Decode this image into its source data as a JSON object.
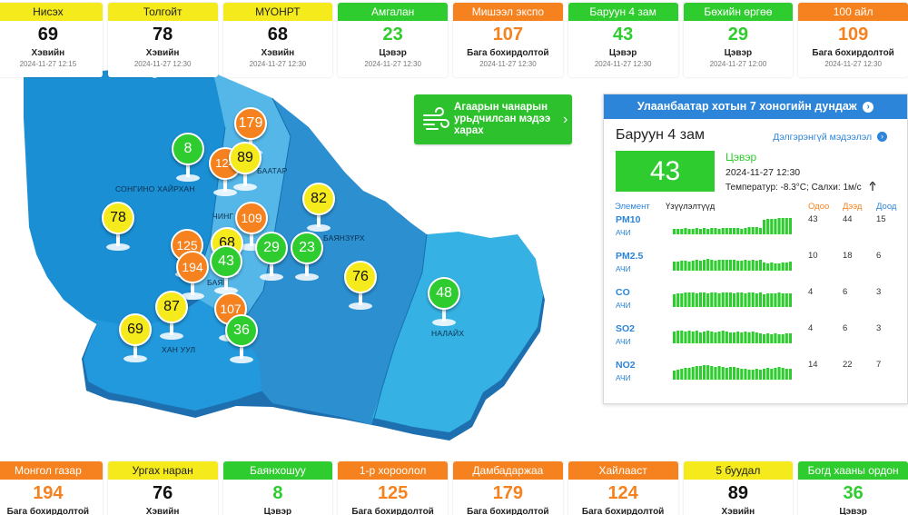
{
  "top_cards": [
    {
      "name": "Нисэх",
      "value": "69",
      "status": "Хэвийн",
      "time": "2024-11-27 12:15",
      "level": "yellow"
    },
    {
      "name": "Толгойт",
      "value": "78",
      "status": "Хэвийн",
      "time": "2024-11-27 12:30",
      "level": "yellow"
    },
    {
      "name": "МҮОНРТ",
      "value": "68",
      "status": "Хэвийн",
      "time": "2024-11-27 12:30",
      "level": "yellow"
    },
    {
      "name": "Амгалан",
      "value": "23",
      "status": "Цэвэр",
      "time": "2024-11-27 12:30",
      "level": "green"
    },
    {
      "name": "Мишээл экспо",
      "value": "107",
      "status": "Бага бохирдолтой",
      "time": "2024-11-27 12:30",
      "level": "orange"
    },
    {
      "name": "Баруун 4 зам",
      "value": "43",
      "status": "Цэвэр",
      "time": "2024-11-27 12:30",
      "level": "green"
    },
    {
      "name": "Бөхийн өргөө",
      "value": "29",
      "status": "Цэвэр",
      "time": "2024-11-27 12:00",
      "level": "green"
    },
    {
      "name": "100 айл",
      "value": "109",
      "status": "Бага бохирдолтой",
      "time": "2024-11-27 12:30",
      "level": "orange"
    }
  ],
  "bottom_cards": [
    {
      "name": "Монгол газар",
      "value": "194",
      "status": "Бага бохирдолтой",
      "level": "orange"
    },
    {
      "name": "Ургах наран",
      "value": "76",
      "status": "Хэвийн",
      "level": "yellow"
    },
    {
      "name": "Баянхошуу",
      "value": "8",
      "status": "Цэвэр",
      "level": "green"
    },
    {
      "name": "1-р хороолол",
      "value": "125",
      "status": "Бага бохирдолтой",
      "level": "orange"
    },
    {
      "name": "Дамбадаржаа",
      "value": "179",
      "status": "Бага бохирдолтой",
      "level": "orange"
    },
    {
      "name": "Хайлааст",
      "value": "124",
      "status": "Бага бохирдолтой",
      "level": "orange"
    },
    {
      "name": "5 буудал",
      "value": "89",
      "status": "Хэвийн",
      "level": "yellow"
    },
    {
      "name": "Богд хааны ордон музей",
      "value": "36",
      "status": "Цэвэр",
      "level": "green"
    }
  ],
  "map": {
    "district_labels": [
      "СОНГИНО ХАЙРХАН",
      "ЧИНГ",
      "БААТАР",
      "БАЯНЗҮРХ",
      "БАЯН",
      "ХАН УУЛ",
      "НАЛАЙХ"
    ],
    "markers": [
      "8",
      "179",
      "124",
      "89",
      "82",
      "78",
      "109",
      "125",
      "68",
      "29",
      "23",
      "194",
      "43",
      "76",
      "48",
      "87",
      "107",
      "69",
      "36"
    ]
  },
  "forecast_button": {
    "label": "Агаарын чанарын урьдчилсан мэдээ харах",
    "icon": "wind-icon"
  },
  "panel": {
    "header": "Улаанбаатар хотын 7 хоногийн дундаж",
    "station": "Баруун 4 зам",
    "detail_link": "Дэлгэрэнгүй мэдээлэл",
    "aqi": "43",
    "status": "Цэвэр",
    "time": "2024-11-27 12:30",
    "weather": "Температур: -8.3°C; Салхи: 1м/с",
    "columns": {
      "element": "Элемент",
      "trend": "Үзүүлэлтүүд",
      "now": "Одоо",
      "max": "Дээд",
      "min": "Доод"
    },
    "pollutants": [
      {
        "name": "PM10",
        "sub": "АЧИ",
        "now": "43",
        "max": "44",
        "min": "15",
        "trend": [
          0.3,
          0.3,
          0.3,
          0.35,
          0.3,
          0.3,
          0.35,
          0.3,
          0.35,
          0.3,
          0.35,
          0.35,
          0.3,
          0.35,
          0.35,
          0.35,
          0.35,
          0.35,
          0.3,
          0.35,
          0.4,
          0.4,
          0.4,
          0.35,
          0.8,
          0.85,
          0.85,
          0.85,
          0.9,
          0.9,
          0.9,
          0.9
        ]
      },
      {
        "name": "PM2.5",
        "sub": "АЧИ",
        "now": "10",
        "max": "18",
        "min": "6",
        "trend": [
          0.5,
          0.5,
          0.55,
          0.55,
          0.5,
          0.55,
          0.6,
          0.55,
          0.6,
          0.65,
          0.6,
          0.55,
          0.6,
          0.6,
          0.6,
          0.6,
          0.6,
          0.55,
          0.55,
          0.6,
          0.55,
          0.6,
          0.55,
          0.6,
          0.45,
          0.4,
          0.45,
          0.4,
          0.4,
          0.45,
          0.45,
          0.5
        ]
      },
      {
        "name": "CO",
        "sub": "АЧИ",
        "now": "4",
        "max": "6",
        "min": "3",
        "trend": [
          0.7,
          0.75,
          0.75,
          0.8,
          0.8,
          0.8,
          0.75,
          0.8,
          0.8,
          0.75,
          0.8,
          0.8,
          0.75,
          0.8,
          0.8,
          0.8,
          0.75,
          0.8,
          0.8,
          0.75,
          0.8,
          0.8,
          0.75,
          0.8,
          0.7,
          0.75,
          0.75,
          0.75,
          0.8,
          0.75,
          0.75,
          0.75
        ]
      },
      {
        "name": "SO2",
        "sub": "АЧИ",
        "now": "4",
        "max": "6",
        "min": "3",
        "trend": [
          0.65,
          0.7,
          0.7,
          0.65,
          0.7,
          0.65,
          0.7,
          0.6,
          0.65,
          0.7,
          0.65,
          0.6,
          0.65,
          0.7,
          0.65,
          0.6,
          0.6,
          0.65,
          0.6,
          0.65,
          0.6,
          0.65,
          0.6,
          0.55,
          0.5,
          0.55,
          0.5,
          0.55,
          0.5,
          0.5,
          0.55,
          0.55
        ]
      },
      {
        "name": "NO2",
        "sub": "АЧИ",
        "now": "14",
        "max": "22",
        "min": "7",
        "trend": [
          0.5,
          0.55,
          0.6,
          0.65,
          0.65,
          0.7,
          0.75,
          0.75,
          0.8,
          0.8,
          0.75,
          0.7,
          0.75,
          0.7,
          0.65,
          0.7,
          0.7,
          0.65,
          0.6,
          0.6,
          0.55,
          0.55,
          0.6,
          0.55,
          0.6,
          0.65,
          0.6,
          0.65,
          0.7,
          0.65,
          0.6,
          0.6
        ]
      }
    ]
  },
  "colors": {
    "green": "#2ecc2e",
    "yellow": "#f4ea1c",
    "orange": "#f5821f",
    "blue": "#2c85d9"
  }
}
